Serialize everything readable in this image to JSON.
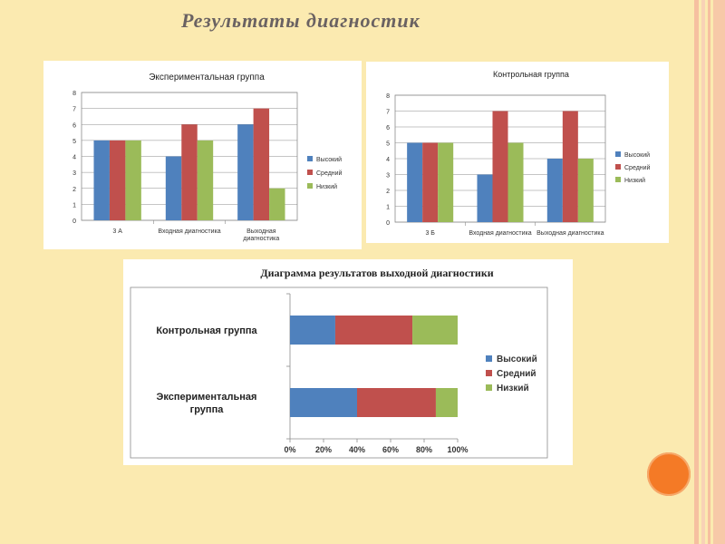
{
  "slide_title": "Результаты диагностик",
  "colors": {
    "background": "#fbeab0",
    "high": "#4f81bd",
    "medium": "#c0504d",
    "low": "#9bbb59",
    "accent_circle": "#f47a26"
  },
  "chart_data": [
    {
      "type": "bar",
      "title": "Экспериментальная группа",
      "categories": [
        "3 А",
        "Входная диагностика",
        "Выходная диагностика"
      ],
      "series": [
        {
          "name": "Высокий",
          "values": [
            5,
            4,
            6
          ]
        },
        {
          "name": "Средний",
          "values": [
            5,
            6,
            7
          ]
        },
        {
          "name": "Низкий",
          "values": [
            5,
            5,
            2
          ]
        }
      ],
      "ylim": [
        0,
        8
      ],
      "yticks": [
        0,
        1,
        2,
        3,
        4,
        5,
        6,
        7,
        8
      ],
      "grid": true,
      "legend": "right"
    },
    {
      "type": "bar",
      "title": "Контрольная группа",
      "categories": [
        "3 Б",
        "Входная диагностика",
        "Выходная диагностика"
      ],
      "series": [
        {
          "name": "Высокий",
          "values": [
            5,
            3,
            4
          ]
        },
        {
          "name": "Средний",
          "values": [
            5,
            7,
            7
          ]
        },
        {
          "name": "Низкий",
          "values": [
            5,
            5,
            4
          ]
        }
      ],
      "ylim": [
        0,
        8
      ],
      "yticks": [
        0,
        1,
        2,
        3,
        4,
        5,
        6,
        7,
        8
      ],
      "grid": true,
      "legend": "right"
    },
    {
      "type": "bar",
      "orientation": "horizontal",
      "stacked": "percent",
      "title": "Диаграмма результатов выходной диагностики",
      "categories": [
        "Контрольная группа",
        "Экспериментальная группа"
      ],
      "series": [
        {
          "name": "Высокий",
          "values": [
            27,
            40
          ]
        },
        {
          "name": "Средний",
          "values": [
            46,
            47
          ]
        },
        {
          "name": "Низкий",
          "values": [
            27,
            13
          ]
        }
      ],
      "xticks": [
        "0%",
        "20%",
        "40%",
        "60%",
        "80%",
        "100%"
      ],
      "xlim": [
        0,
        100
      ],
      "grid": false,
      "legend": "right"
    }
  ]
}
